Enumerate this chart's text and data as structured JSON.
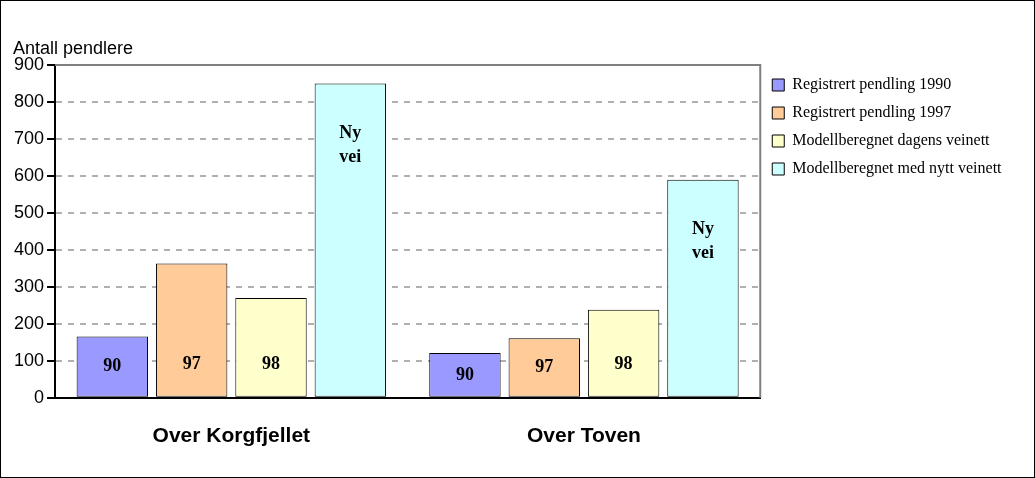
{
  "chart_data": {
    "type": "bar",
    "ylabel": "Antall pendlere",
    "categories": [
      "Over Korgfjellet",
      "Over Toven"
    ],
    "series": [
      {
        "name": "Registrert pendling 1990",
        "color": "#9999ff",
        "values": [
          166,
          121
        ]
      },
      {
        "name": "Registrert pendling 1997",
        "color": "#ffcc99",
        "values": [
          363,
          161
        ]
      },
      {
        "name": "Modellberegnet dagens veinett",
        "color": "#ffffcc",
        "values": [
          270,
          238
        ]
      },
      {
        "name": "Modellberegnet med nytt veinett",
        "color": "#ccffff",
        "values": [
          850,
          590
        ]
      }
    ],
    "annotations": [
      "90",
      "97",
      "98",
      "Ny vei",
      "90",
      "97",
      "98",
      "Ny vei"
    ],
    "ylim": [
      0,
      900
    ],
    "yticks": [
      0,
      100,
      200,
      300,
      400,
      500,
      600,
      700,
      800,
      900
    ],
    "grid": "y",
    "legend": "right"
  }
}
